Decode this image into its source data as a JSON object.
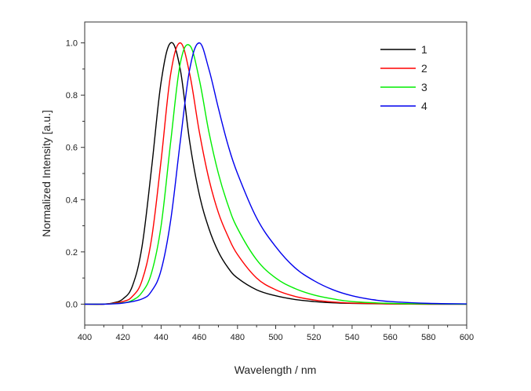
{
  "chart_data": {
    "type": "line",
    "title": "",
    "xlabel": "Wavelength / nm",
    "ylabel": "Normalized Intensity [a.u.]",
    "xlim": [
      400,
      600
    ],
    "ylim": [
      -0.08,
      1.08
    ],
    "xticks": [
      400,
      420,
      440,
      460,
      480,
      500,
      520,
      540,
      560,
      580,
      600
    ],
    "yticks": [
      0.0,
      0.2,
      0.4,
      0.6,
      0.8,
      1.0
    ],
    "ytick_labels": [
      "0.0",
      "0.2",
      "0.4",
      "0.6",
      "0.8",
      "1.0"
    ],
    "grid": false,
    "legend_position": "top-right",
    "series": [
      {
        "name": "1",
        "color": "#000000",
        "x": [
          400,
          410,
          415,
          420,
          425,
          430,
          435,
          440,
          445,
          450,
          455,
          460,
          465,
          470,
          475,
          480,
          490,
          500,
          510,
          520,
          530,
          540,
          560,
          580,
          600
        ],
        "y": [
          0.0,
          0.0,
          0.005,
          0.02,
          0.07,
          0.22,
          0.52,
          0.85,
          1.0,
          0.9,
          0.62,
          0.42,
          0.29,
          0.2,
          0.14,
          0.1,
          0.055,
          0.032,
          0.018,
          0.01,
          0.005,
          0.003,
          0.001,
          0.0,
          0.0
        ]
      },
      {
        "name": "2",
        "color": "#ff0000",
        "x": [
          400,
          410,
          420,
          425,
          430,
          435,
          440,
          445,
          450,
          455,
          460,
          465,
          470,
          475,
          480,
          490,
          500,
          510,
          520,
          530,
          540,
          560,
          580,
          600
        ],
        "y": [
          0.0,
          0.0,
          0.01,
          0.03,
          0.09,
          0.25,
          0.55,
          0.88,
          1.0,
          0.88,
          0.66,
          0.48,
          0.35,
          0.26,
          0.19,
          0.1,
          0.055,
          0.03,
          0.016,
          0.008,
          0.004,
          0.001,
          0.0,
          0.0
        ]
      },
      {
        "name": "3",
        "color": "#00ee00",
        "x": [
          400,
          410,
          420,
          425,
          430,
          435,
          440,
          445,
          450,
          455,
          460,
          465,
          470,
          475,
          480,
          490,
          500,
          510,
          520,
          530,
          540,
          560,
          580,
          600
        ],
        "y": [
          0.0,
          0.0,
          0.005,
          0.015,
          0.045,
          0.12,
          0.3,
          0.62,
          0.92,
          0.99,
          0.86,
          0.66,
          0.5,
          0.38,
          0.29,
          0.17,
          0.1,
          0.06,
          0.035,
          0.02,
          0.01,
          0.003,
          0.001,
          0.0
        ]
      },
      {
        "name": "4",
        "color": "#0000ee",
        "x": [
          400,
          410,
          420,
          430,
          435,
          440,
          445,
          450,
          455,
          460,
          465,
          470,
          475,
          480,
          490,
          500,
          510,
          520,
          530,
          540,
          550,
          560,
          580,
          600
        ],
        "y": [
          0.0,
          0.0,
          0.004,
          0.02,
          0.05,
          0.13,
          0.32,
          0.62,
          0.9,
          1.0,
          0.9,
          0.75,
          0.61,
          0.5,
          0.33,
          0.22,
          0.14,
          0.09,
          0.055,
          0.032,
          0.018,
          0.01,
          0.003,
          0.001
        ]
      }
    ]
  }
}
